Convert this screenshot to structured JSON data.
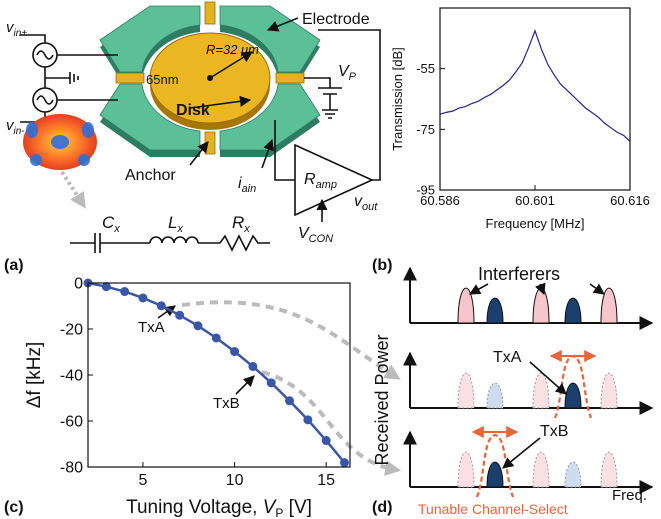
{
  "panel_labels": [
    "(a)",
    "(b)",
    "(c)",
    "(d)"
  ],
  "panel_a": {
    "electrode": "Electrode",
    "gap": "65nm",
    "radius": "R=32 μm",
    "disk": "Disk",
    "anchor": "Anchor",
    "vin_plus": {
      "base": "v",
      "sub": "in+"
    },
    "vin_minus": {
      "base": "v",
      "sub": "in-"
    },
    "vp": {
      "base": "V",
      "sub": "P"
    },
    "iain": {
      "base": "i",
      "sub": "ain"
    },
    "ramp": {
      "base": "R",
      "sub": "amp"
    },
    "vout": {
      "base": "v",
      "sub": "out"
    },
    "vcon": {
      "base": "V",
      "sub": "CON"
    },
    "cx": {
      "base": "C",
      "sub": "x"
    },
    "lx": {
      "base": "L",
      "sub": "x"
    },
    "rx": {
      "base": "R",
      "sub": "x"
    }
  },
  "chart_data": [
    {
      "type": "line",
      "x_label": "Frequency [MHz]",
      "y_label": "Transmission [dB]",
      "x": [
        60.586,
        60.587,
        60.588,
        60.589,
        60.59,
        60.591,
        60.592,
        60.593,
        60.594,
        60.595,
        60.596,
        60.597,
        60.598,
        60.599,
        60.6,
        60.601,
        60.602,
        60.603,
        60.604,
        60.605,
        60.606,
        60.607,
        60.608,
        60.609,
        60.61,
        60.611,
        60.612,
        60.613,
        60.614,
        60.615,
        60.616
      ],
      "series": [
        {
          "color": "#23238f",
          "values": [
            -70,
            -69.4,
            -69,
            -68,
            -67.5,
            -66.5,
            -65.8,
            -64.5,
            -63.5,
            -62,
            -60.5,
            -58.7,
            -56,
            -53,
            -48,
            -42.5,
            -48.5,
            -53.5,
            -57,
            -60,
            -62,
            -64,
            -66,
            -68,
            -69.5,
            -71,
            -73,
            -74.5,
            -76,
            -77,
            -79
          ]
        }
      ],
      "xlim": [
        60.586,
        60.616
      ],
      "xticks": [
        60.586,
        60.601,
        60.616
      ],
      "ylim": [
        -95,
        -35
      ],
      "yticks": [
        -55,
        -75,
        -95
      ],
      "markers": false
    },
    {
      "type": "line",
      "x_label": {
        "text": "Tuning Voltage, ",
        "var": "V",
        "sub": "P",
        "unit": " [V]"
      },
      "y_label": "Δf [kHz]",
      "x": [
        2,
        3,
        4,
        5,
        6,
        7,
        8,
        9,
        10,
        11,
        12,
        13,
        14,
        15,
        16
      ],
      "series": [
        {
          "color": "#3a56a8",
          "values": [
            0,
            -1.6,
            -3.7,
            -6.5,
            -9.9,
            -14,
            -18.6,
            -23.9,
            -29.8,
            -36.3,
            -43.4,
            -51.2,
            -59.5,
            -68.5,
            -78.1
          ]
        }
      ],
      "xlim": [
        2,
        16.3
      ],
      "xticks": [
        5,
        10,
        15
      ],
      "ylim": [
        -80,
        0
      ],
      "yticks": [
        0,
        -20,
        -40,
        -60,
        -80
      ],
      "markers": true,
      "annotations": [
        "TxA",
        "TxB"
      ]
    }
  ],
  "panel_d": {
    "interferers": "Interferers",
    "txa": "TxA",
    "txb": "TxB",
    "y_label": "Received Power",
    "x_label": "Freq.",
    "filter": "Tunable Channel-Select"
  }
}
